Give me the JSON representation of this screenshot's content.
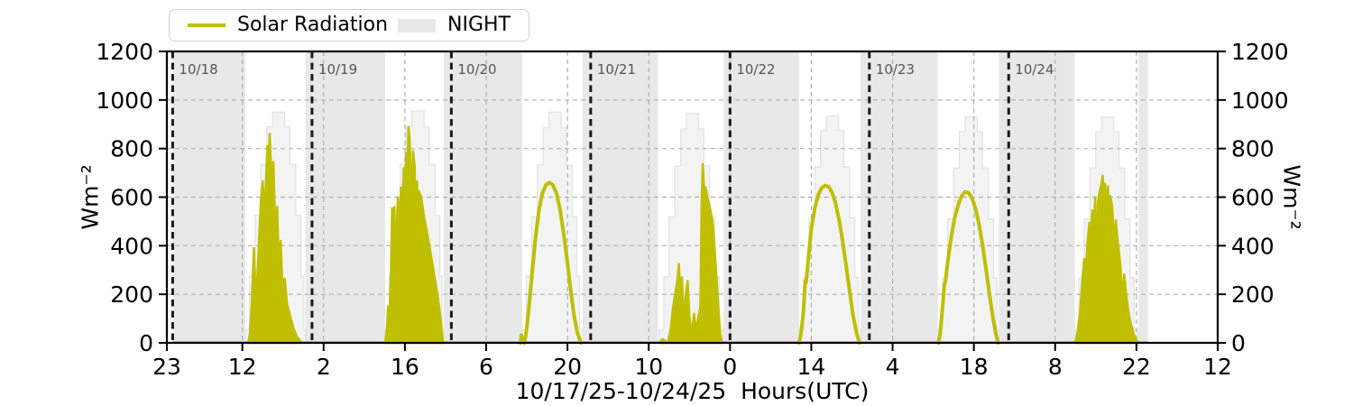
{
  "chart_data": {
    "type": "line",
    "title": "",
    "xlabel": "10/17/25-10/24/25  Hours(UTC)",
    "ylabel_left": "Wm⁻²",
    "ylabel_right": "Wm⁻²",
    "ylim": [
      0,
      1200
    ],
    "yticks": [
      0,
      200,
      400,
      600,
      800,
      1000,
      1200
    ],
    "x_axis": {
      "start_label": "10/17/25 23:00 UTC",
      "end_label": "10/25/25 12:00 UTC",
      "span_hours": 181,
      "units": "Hours (UTC)"
    },
    "xticks": [
      {
        "h": 0,
        "label": "23"
      },
      {
        "h": 13,
        "label": "12"
      },
      {
        "h": 27,
        "label": "2"
      },
      {
        "h": 41,
        "label": "16"
      },
      {
        "h": 55,
        "label": "6"
      },
      {
        "h": 69,
        "label": "20"
      },
      {
        "h": 83,
        "label": "10"
      },
      {
        "h": 97,
        "label": "0"
      },
      {
        "h": 111,
        "label": "14"
      },
      {
        "h": 125,
        "label": "4"
      },
      {
        "h": 139,
        "label": "18"
      },
      {
        "h": 153,
        "label": "8"
      },
      {
        "h": 167,
        "label": "22"
      },
      {
        "h": 181,
        "label": "12"
      }
    ],
    "grid": "dashed",
    "legend_position": "top-left",
    "legend": [
      {
        "label": "Solar Radiation",
        "type": "line",
        "color": "#bfbf00"
      },
      {
        "label": "NIGHT",
        "type": "patch",
        "color": "#e8e8e8"
      }
    ],
    "day_boundaries": [
      {
        "h": 1,
        "label": "10/18"
      },
      {
        "h": 25,
        "label": "10/19"
      },
      {
        "h": 49,
        "label": "10/20"
      },
      {
        "h": 73,
        "label": "10/21"
      },
      {
        "h": 97,
        "label": "10/22"
      },
      {
        "h": 121,
        "label": "10/23"
      },
      {
        "h": 145,
        "label": "10/24"
      }
    ],
    "nights_h": [
      [
        1.1,
        13.5
      ],
      [
        23.9,
        37.6
      ],
      [
        47.7,
        61.2
      ],
      [
        71.6,
        84.6
      ],
      [
        95.9,
        108.9
      ],
      [
        119.5,
        132.8
      ],
      [
        143.3,
        156.4
      ],
      [
        167.4,
        169.0
      ]
    ],
    "clear_sky_steps": [
      [
        [
          13.5,
          55
        ],
        [
          14.2,
          275
        ],
        [
          15.2,
          525
        ],
        [
          16.2,
          735
        ],
        [
          17.2,
          890
        ],
        [
          18.2,
          950
        ],
        [
          20.3,
          890
        ],
        [
          21.2,
          735
        ],
        [
          22.2,
          525
        ],
        [
          23.1,
          275
        ],
        [
          23.6,
          55
        ],
        [
          23.9,
          0
        ]
      ],
      [
        [
          37.6,
          55
        ],
        [
          38.3,
          275
        ],
        [
          39.2,
          525
        ],
        [
          40.2,
          735
        ],
        [
          41.2,
          890
        ],
        [
          42.2,
          955
        ],
        [
          44.3,
          890
        ],
        [
          45.2,
          735
        ],
        [
          46.2,
          525
        ],
        [
          47.0,
          275
        ],
        [
          47.4,
          55
        ],
        [
          47.7,
          0
        ]
      ],
      [
        [
          61.2,
          55
        ],
        [
          61.9,
          275
        ],
        [
          62.8,
          520
        ],
        [
          63.8,
          732
        ],
        [
          64.8,
          885
        ],
        [
          65.8,
          950
        ],
        [
          67.9,
          885
        ],
        [
          68.8,
          732
        ],
        [
          69.8,
          520
        ],
        [
          70.6,
          275
        ],
        [
          71.1,
          55
        ],
        [
          71.5,
          0
        ]
      ],
      [
        [
          84.8,
          55
        ],
        [
          85.6,
          272
        ],
        [
          86.5,
          518
        ],
        [
          87.5,
          728
        ],
        [
          88.5,
          880
        ],
        [
          89.5,
          945
        ],
        [
          91.6,
          880
        ],
        [
          92.5,
          728
        ],
        [
          93.5,
          518
        ],
        [
          94.4,
          272
        ],
        [
          95.1,
          55
        ],
        [
          95.8,
          0
        ]
      ],
      [
        [
          109.0,
          55
        ],
        [
          109.7,
          270
        ],
        [
          110.6,
          515
        ],
        [
          111.6,
          725
        ],
        [
          112.6,
          875
        ],
        [
          113.6,
          935
        ],
        [
          115.7,
          875
        ],
        [
          116.6,
          725
        ],
        [
          117.6,
          515
        ],
        [
          118.5,
          270
        ],
        [
          119.1,
          55
        ],
        [
          119.5,
          0
        ]
      ],
      [
        [
          132.9,
          55
        ],
        [
          133.6,
          268
        ],
        [
          134.5,
          510
        ],
        [
          135.5,
          720
        ],
        [
          136.5,
          870
        ],
        [
          137.5,
          930
        ],
        [
          139.6,
          870
        ],
        [
          140.5,
          720
        ],
        [
          141.5,
          510
        ],
        [
          142.4,
          268
        ],
        [
          143.0,
          55
        ],
        [
          143.3,
          0
        ]
      ],
      [
        [
          156.4,
          55
        ],
        [
          157.1,
          268
        ],
        [
          158.0,
          510
        ],
        [
          159.0,
          720
        ],
        [
          160.0,
          870
        ],
        [
          161.0,
          930
        ],
        [
          163.1,
          870
        ],
        [
          164.0,
          720
        ],
        [
          165.0,
          510
        ],
        [
          165.9,
          268
        ],
        [
          166.6,
          55
        ],
        [
          167.3,
          0
        ]
      ]
    ],
    "baseline_h": [
      1.0,
      169.0
    ],
    "solar_radiation_days": [
      {
        "date": "10/18",
        "peak": 860,
        "fill": true,
        "points": [
          [
            14.0,
            0
          ],
          [
            14.3,
            40
          ],
          [
            14.6,
            150
          ],
          [
            15.0,
            390
          ],
          [
            15.2,
            250
          ],
          [
            15.5,
            230
          ],
          [
            15.9,
            430
          ],
          [
            16.2,
            590
          ],
          [
            16.5,
            665
          ],
          [
            16.8,
            540
          ],
          [
            17.0,
            620
          ],
          [
            17.3,
            810
          ],
          [
            17.5,
            700
          ],
          [
            17.7,
            860
          ],
          [
            17.9,
            750
          ],
          [
            18.1,
            560
          ],
          [
            18.35,
            745
          ],
          [
            18.6,
            520
          ],
          [
            18.8,
            420
          ],
          [
            19.0,
            560
          ],
          [
            19.3,
            300
          ],
          [
            19.6,
            420
          ],
          [
            19.9,
            230
          ],
          [
            20.3,
            265
          ],
          [
            20.7,
            160
          ],
          [
            21.2,
            115
          ],
          [
            21.8,
            60
          ],
          [
            22.4,
            25
          ],
          [
            23.3,
            0
          ]
        ]
      },
      {
        "date": "10/19",
        "peak": 890,
        "fill": true,
        "points": [
          [
            37.6,
            0
          ],
          [
            37.9,
            60
          ],
          [
            38.1,
            150
          ],
          [
            38.3,
            90
          ],
          [
            38.6,
            300
          ],
          [
            38.8,
            555
          ],
          [
            39.0,
            420
          ],
          [
            39.2,
            560
          ],
          [
            39.4,
            185
          ],
          [
            39.6,
            480
          ],
          [
            39.8,
            600
          ],
          [
            40.0,
            350
          ],
          [
            40.3,
            640
          ],
          [
            40.5,
            500
          ],
          [
            40.8,
            720
          ],
          [
            41.0,
            560
          ],
          [
            41.2,
            780
          ],
          [
            41.4,
            650
          ],
          [
            41.6,
            890
          ],
          [
            41.8,
            845
          ],
          [
            42.0,
            700
          ],
          [
            42.2,
            480
          ],
          [
            42.4,
            790
          ],
          [
            42.7,
            725
          ],
          [
            42.9,
            300
          ],
          [
            43.1,
            665
          ],
          [
            43.25,
            150
          ],
          [
            43.4,
            625
          ],
          [
            43.8,
            600
          ],
          [
            44.3,
            520
          ],
          [
            45.0,
            430
          ],
          [
            45.7,
            330
          ],
          [
            46.4,
            230
          ],
          [
            47.0,
            130
          ],
          [
            47.4,
            40
          ],
          [
            47.6,
            0
          ]
        ]
      },
      {
        "date": "10/20",
        "peak": 660,
        "fill": false,
        "points": [
          [
            60.9,
            0
          ],
          [
            61.05,
            32
          ],
          [
            61.2,
            6
          ],
          [
            61.6,
            0
          ],
          [
            61.9,
            45
          ],
          [
            62.3,
            130
          ],
          [
            62.9,
            285
          ],
          [
            63.5,
            435
          ],
          [
            64.1,
            548
          ],
          [
            64.7,
            618
          ],
          [
            65.3,
            650
          ],
          [
            65.9,
            660
          ],
          [
            66.5,
            650
          ],
          [
            67.1,
            617
          ],
          [
            67.7,
            552
          ],
          [
            68.3,
            458
          ],
          [
            68.9,
            348
          ],
          [
            69.5,
            228
          ],
          [
            70.1,
            118
          ],
          [
            70.7,
            42
          ],
          [
            71.3,
            0
          ]
        ]
      },
      {
        "date": "10/21",
        "peak": 736,
        "fill": true,
        "points": [
          [
            84.7,
            0
          ],
          [
            85.4,
            15
          ],
          [
            86.3,
            0
          ],
          [
            86.8,
            60
          ],
          [
            87.2,
            150
          ],
          [
            87.9,
            250
          ],
          [
            88.2,
            325
          ],
          [
            88.45,
            180
          ],
          [
            88.7,
            270
          ],
          [
            89.1,
            90
          ],
          [
            89.4,
            200
          ],
          [
            89.7,
            255
          ],
          [
            90.0,
            110
          ],
          [
            90.4,
            30
          ],
          [
            90.8,
            120
          ],
          [
            91.2,
            45
          ],
          [
            91.5,
            100
          ],
          [
            91.9,
            150
          ],
          [
            92.1,
            560
          ],
          [
            92.3,
            736
          ],
          [
            92.5,
            650
          ],
          [
            92.65,
            190
          ],
          [
            92.8,
            640
          ],
          [
            93.1,
            600
          ],
          [
            93.5,
            560
          ],
          [
            94.0,
            500
          ],
          [
            94.4,
            370
          ],
          [
            94.9,
            180
          ],
          [
            95.3,
            40
          ],
          [
            95.6,
            0
          ]
        ]
      },
      {
        "date": "10/22",
        "peak": 648,
        "fill": false,
        "points": [
          [
            108.9,
            0
          ],
          [
            109.2,
            35
          ],
          [
            109.6,
            115
          ],
          [
            109.95,
            255
          ],
          [
            110.1,
            248
          ],
          [
            110.5,
            350
          ],
          [
            111.0,
            470
          ],
          [
            111.6,
            555
          ],
          [
            112.2,
            610
          ],
          [
            112.8,
            638
          ],
          [
            113.4,
            648
          ],
          [
            114.0,
            643
          ],
          [
            114.6,
            618
          ],
          [
            115.2,
            572
          ],
          [
            115.8,
            505
          ],
          [
            116.4,
            418
          ],
          [
            117.0,
            318
          ],
          [
            117.6,
            212
          ],
          [
            118.2,
            112
          ],
          [
            118.8,
            40
          ],
          [
            119.3,
            0
          ]
        ]
      },
      {
        "date": "10/23",
        "peak": 622,
        "fill": false,
        "points": [
          [
            132.9,
            0
          ],
          [
            133.2,
            38
          ],
          [
            133.6,
            145
          ],
          [
            133.9,
            235
          ],
          [
            134.1,
            252
          ],
          [
            134.5,
            335
          ],
          [
            135.1,
            435
          ],
          [
            135.7,
            515
          ],
          [
            136.3,
            568
          ],
          [
            136.9,
            605
          ],
          [
            137.5,
            622
          ],
          [
            138.1,
            618
          ],
          [
            138.7,
            595
          ],
          [
            139.3,
            552
          ],
          [
            139.9,
            487
          ],
          [
            140.5,
            402
          ],
          [
            141.1,
            302
          ],
          [
            141.7,
            198
          ],
          [
            142.3,
            102
          ],
          [
            142.8,
            35
          ],
          [
            143.2,
            0
          ]
        ]
      },
      {
        "date": "10/24",
        "peak": 688,
        "fill": true,
        "points": [
          [
            156.5,
            0
          ],
          [
            156.9,
            50
          ],
          [
            157.3,
            130
          ],
          [
            157.7,
            260
          ],
          [
            158.0,
            345
          ],
          [
            158.3,
            300
          ],
          [
            158.6,
            420
          ],
          [
            158.9,
            495
          ],
          [
            159.1,
            430
          ],
          [
            159.4,
            545
          ],
          [
            159.7,
            485
          ],
          [
            159.9,
            600
          ],
          [
            160.15,
            350
          ],
          [
            160.4,
            585
          ],
          [
            160.7,
            625
          ],
          [
            161.0,
            660
          ],
          [
            161.2,
            688
          ],
          [
            161.4,
            600
          ],
          [
            161.6,
            655
          ],
          [
            161.9,
            520
          ],
          [
            162.1,
            645
          ],
          [
            162.3,
            330
          ],
          [
            162.5,
            605
          ],
          [
            162.8,
            565
          ],
          [
            163.0,
            485
          ],
          [
            163.2,
            290
          ],
          [
            163.45,
            505
          ],
          [
            163.7,
            435
          ],
          [
            164.0,
            372
          ],
          [
            164.3,
            302
          ],
          [
            164.6,
            162
          ],
          [
            164.9,
            282
          ],
          [
            165.2,
            205
          ],
          [
            165.6,
            132
          ],
          [
            166.0,
            82
          ],
          [
            166.5,
            38
          ],
          [
            167.0,
            12
          ],
          [
            167.4,
            0
          ]
        ]
      }
    ]
  },
  "colors": {
    "solar_line": "#bfbf00",
    "night_fill": "#e8e8e8",
    "clearsky_fill": "#f3f3f3",
    "clearsky_edge": "#e2e2e2",
    "grid": "#b0b0b0",
    "day_boundary_line": "#1a1a1a",
    "day_label": "#555555",
    "axis": "#000000",
    "legend_border": "#d2d2d2"
  }
}
